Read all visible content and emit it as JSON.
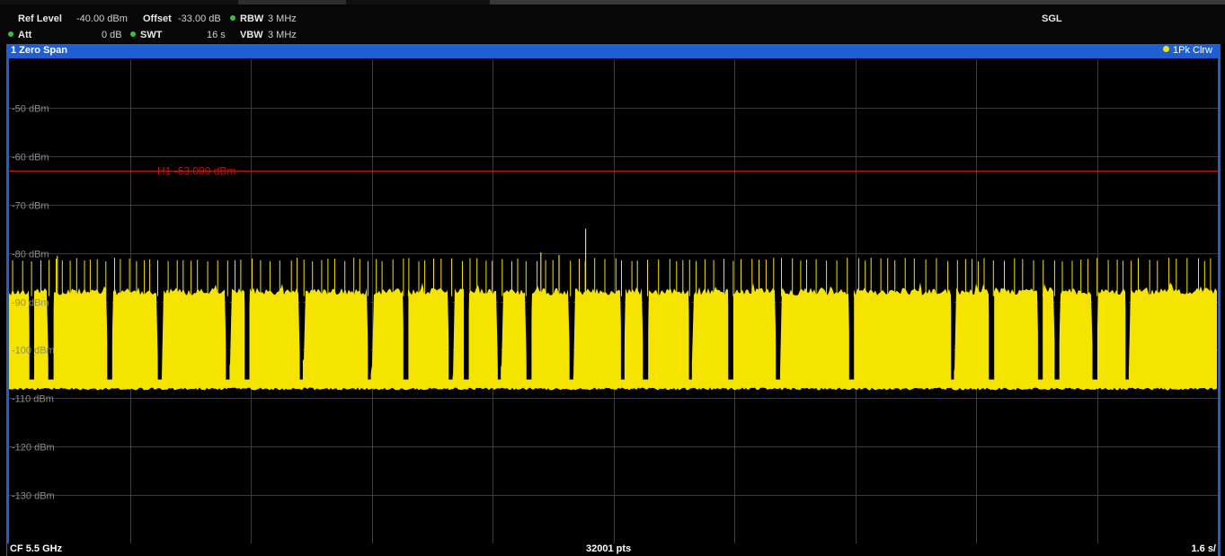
{
  "header": {
    "ref_level_label": "Ref Level",
    "ref_level_value": "-40.00 dBm",
    "offset_label": "Offset",
    "offset_value": "-33.00 dB",
    "rbw_label": "RBW",
    "rbw_value": "3 MHz",
    "att_label": "Att",
    "att_value": "0 dB",
    "swt_label": "SWT",
    "swt_value": "16 s",
    "vbw_label": "VBW",
    "vbw_value": "3 MHz",
    "sweep_mode": "SGL",
    "indicator_color": "#3bbb4a"
  },
  "window": {
    "title": "1 Zero Span",
    "trace_label": "1Pk Clrw",
    "trace_color": "#f5e300",
    "accent_color": "#1f5fd0"
  },
  "footer": {
    "center_freq": "CF 5.5 GHz",
    "points": "32001 pts",
    "time_div": "1.6 s/"
  },
  "chart_data": {
    "type": "line",
    "y_tick_labels": [
      "-50 dBm",
      "-60 dBm",
      "-70 dBm",
      "-80 dBm",
      "-90 dBm",
      "-100 dBm",
      "-110 dBm",
      "-120 dBm",
      "-130 dBm"
    ],
    "y_ticks": [
      -50,
      -60,
      -70,
      -80,
      -90,
      -100,
      -110,
      -120,
      -130
    ],
    "ylim": [
      -140,
      -40
    ],
    "x_divisions": 10,
    "grid": true,
    "hline": {
      "label": "H1 -63.000 dBm",
      "value": -63,
      "color": "#c01818"
    },
    "trace": {
      "name": "1Pk Clrw",
      "color": "#f5e300",
      "noise_floor_dbm": -108,
      "burst_level_dbm": -88,
      "spike_level_dbm": -81,
      "max_peak_dbm": -75,
      "duration_s": 16,
      "gap_times_s": [
        0.27,
        0.52,
        1.3,
        1.97,
        2.87,
        3.12,
        3.85,
        4.75,
        5.22,
        5.82,
        6.02,
        6.47,
        6.85,
        7.42,
        8.1,
        8.39,
        9.0,
        9.52,
        10.15,
        11.12,
        12.47,
        12.97,
        13.62,
        13.84,
        14.34,
        14.78
      ]
    }
  }
}
